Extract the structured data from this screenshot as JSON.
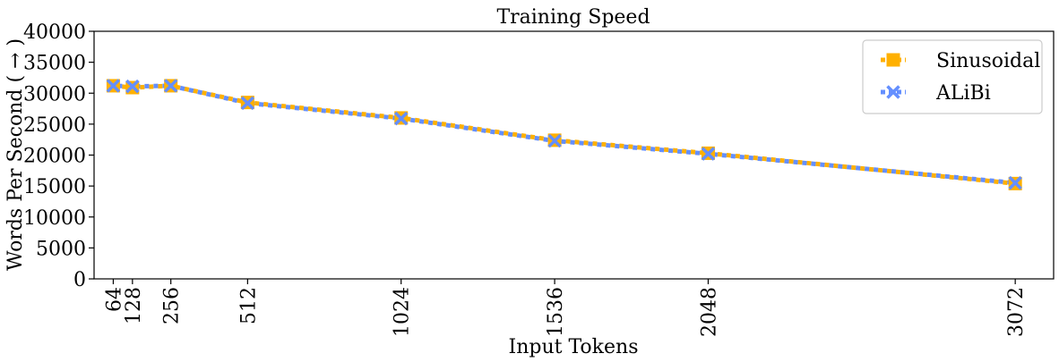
{
  "chart_data": {
    "type": "line",
    "title": "Training Speed",
    "xlabel": "Input Tokens",
    "ylabel": "Words Per Second ( → )",
    "x": [
      64,
      128,
      256,
      512,
      1024,
      1536,
      2048,
      3072
    ],
    "x_ticks": [
      "64",
      "128",
      "256",
      "512",
      "1024",
      "1536",
      "2048",
      "3072"
    ],
    "y_ticks": [
      "0",
      "5000",
      "10000",
      "15000",
      "20000",
      "25000",
      "30000",
      "35000",
      "40000"
    ],
    "ylim": [
      0,
      40000
    ],
    "xlim": [
      0,
      3200
    ],
    "grid": false,
    "legend_position": "top-right",
    "series": [
      {
        "name": "Sinusoidal",
        "color": "#FFB000",
        "marker": "square",
        "linestyle": "dotted",
        "values": [
          31200,
          30900,
          31200,
          28500,
          26000,
          22400,
          20300,
          15400
        ]
      },
      {
        "name": "ALiBi",
        "color": "#648FFF",
        "marker": "x",
        "linestyle": "dotted",
        "values": [
          31200,
          31100,
          31200,
          28400,
          25900,
          22300,
          20200,
          15500
        ]
      }
    ]
  }
}
